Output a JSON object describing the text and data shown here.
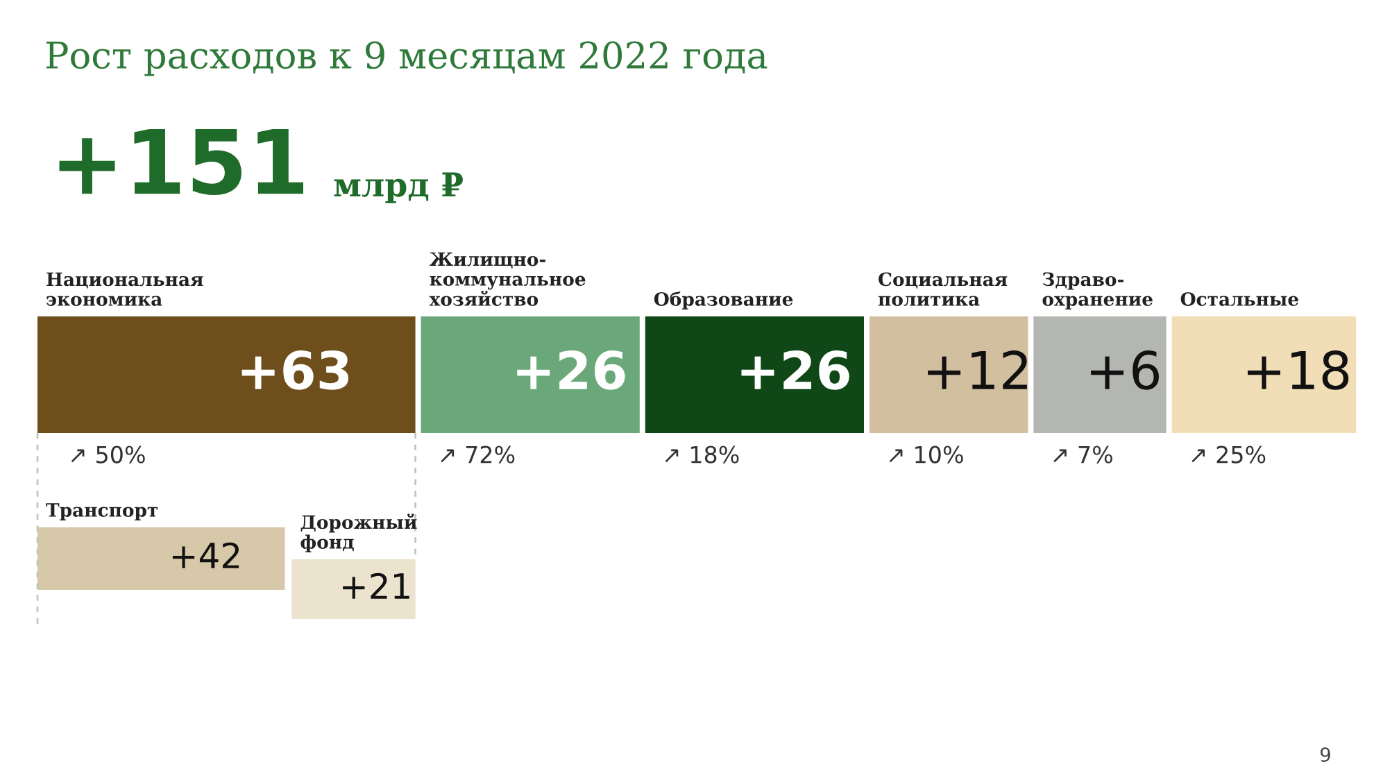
{
  "chart_data": {
    "type": "other",
    "title": "Рост расходов к 9 месяцам 2022 года",
    "subtitle": "+151 млрд ₽",
    "categories": [
      "Национальная\nэкономика",
      "Жилищно-\nкоммунальное\nхозяйство",
      "Образование",
      "Социальная\nполитика",
      "Здраво-\nохранение",
      "Остальные",
      "Транспорт",
      "Дорожный\nфонд"
    ],
    "values": [
      63,
      26,
      26,
      12,
      6,
      18,
      42,
      21
    ],
    "value_labels": [
      "+63",
      "+26",
      "+26",
      "+12",
      "+6",
      "+18",
      "+42",
      "+21"
    ],
    "colors": [
      "#6e4f1c",
      "#6aa87a",
      "#0f4716",
      "#d2bfa0",
      "#b4b6b2",
      "#f1deb6",
      "#d6c8a8",
      "#ece3cf"
    ],
    "annotations": [
      {
        "text": "↗ 50%",
        "x": "Национальная\nэкономика"
      },
      {
        "text": "↗ 72%",
        "x": "Жилищно-\nкоммунальное\nхозяйство"
      },
      {
        "text": "↗ 18%",
        "x": "Образование"
      },
      {
        "text": "↗ 10%",
        "x": "Социальная\nполитика"
      },
      {
        "text": "↗ 7%",
        "x": "Здраво-\nохранение"
      },
      {
        "text": "↗ 25%",
        "x": "Остальные"
      },
      "9"
    ]
  }
}
